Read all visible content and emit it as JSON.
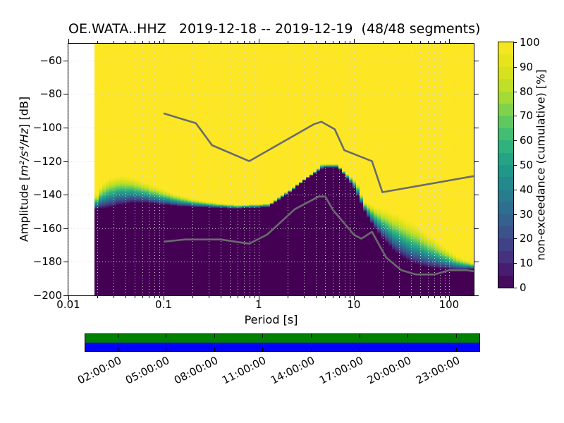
{
  "title": "OE.WATA..HHZ   2019-12-18 -- 2019-12-19  (48/48 segments)",
  "axes": {
    "xlabel": "Period [s]",
    "ylabel_prefix": "Amplitude [",
    "ylabel_math": "m²/s⁴/Hz",
    "ylabel_suffix": "] [dB]",
    "x_ticks": [
      {
        "lp": -2,
        "label": "0.01"
      },
      {
        "lp": -1,
        "label": "0.1"
      },
      {
        "lp": 0,
        "label": "1"
      },
      {
        "lp": 1,
        "label": "10"
      },
      {
        "lp": 2,
        "label": "100"
      }
    ],
    "y_ticks": [
      {
        "db": -60,
        "label": "−60"
      },
      {
        "db": -80,
        "label": "−80"
      },
      {
        "db": -100,
        "label": "−100"
      },
      {
        "db": -120,
        "label": "−120"
      },
      {
        "db": -140,
        "label": "−140"
      },
      {
        "db": -160,
        "label": "−160"
      },
      {
        "db": -180,
        "label": "−180"
      },
      {
        "db": -200,
        "label": "−200"
      }
    ]
  },
  "colorbar": {
    "label": "non-exceedance (cumulative) [%]",
    "ticks": [
      "0",
      "10",
      "20",
      "30",
      "40",
      "50",
      "60",
      "70",
      "80",
      "90",
      "100"
    ],
    "min": 0,
    "max": 100,
    "steps": 20
  },
  "timeline": {
    "labels": [
      "02:00:00",
      "05:00:00",
      "08:00:00",
      "11:00:00",
      "14:00:00",
      "17:00:00",
      "20:00:00",
      "23:00:00"
    ],
    "tick_hours": [
      2,
      5,
      8,
      11,
      14,
      17,
      20,
      23
    ],
    "span_hours": 24.45,
    "top_color": "#008000",
    "bottom_color": "#0000ff"
  },
  "chart_data": {
    "type": "heatmap",
    "description": "PPSD cumulative non-exceedance distribution vs period",
    "x_axis": {
      "label": "Period [s]",
      "scale": "log10",
      "min_log10": -2,
      "max_log10": 2.26
    },
    "y_axis": {
      "label": "Amplitude [m²/s⁴/Hz] [dB]",
      "min": -200,
      "max": -50
    },
    "grid_db": [
      -60,
      -80,
      -100,
      -120,
      -140,
      -160,
      -180
    ],
    "colormap": [
      "#440154",
      "#482878",
      "#3e4a89",
      "#31688e",
      "#26828e",
      "#1f9e89",
      "#35b779",
      "#6ece58",
      "#b5de2b",
      "#dfe318",
      "#fde725"
    ],
    "color_above": "#fde725",
    "color_below": "#440154",
    "data_log10_period_start": -1.719,
    "column_step_log10": 0.0376,
    "boundary_100pct": [
      [
        -1.72,
        -142.4
      ],
      [
        -1.67,
        -135.3
      ],
      [
        -1.61,
        -131.5
      ],
      [
        -1.53,
        -129.0
      ],
      [
        -1.44,
        -128.2
      ],
      [
        -1.35,
        -129.0
      ],
      [
        -1.24,
        -131.1
      ],
      [
        -1.13,
        -134.0
      ],
      [
        -1.0,
        -136.6
      ],
      [
        -0.87,
        -139.5
      ],
      [
        -0.72,
        -142.0
      ],
      [
        -0.57,
        -143.7
      ],
      [
        -0.39,
        -145.0
      ],
      [
        -0.2,
        -145.8
      ],
      [
        -0.02,
        -145.4
      ],
      [
        0.13,
        -145.0
      ],
      [
        0.24,
        -140.3
      ],
      [
        0.36,
        -135.7
      ],
      [
        0.47,
        -131.1
      ],
      [
        0.58,
        -126.9
      ],
      [
        0.67,
        -121.4
      ],
      [
        0.82,
        -121.4
      ],
      [
        0.91,
        -126.5
      ],
      [
        0.99,
        -129.8
      ],
      [
        1.06,
        -134.0
      ],
      [
        1.1,
        -143.7
      ],
      [
        1.17,
        -145.4
      ],
      [
        1.24,
        -147.1
      ],
      [
        1.32,
        -148.3
      ],
      [
        1.39,
        -150.0
      ],
      [
        1.47,
        -151.7
      ],
      [
        1.54,
        -154.2
      ],
      [
        1.62,
        -156.3
      ],
      [
        1.69,
        -158.8
      ],
      [
        1.76,
        -162.2
      ],
      [
        1.84,
        -165.5
      ],
      [
        1.91,
        -168.9
      ],
      [
        1.99,
        -172.3
      ],
      [
        2.06,
        -175.6
      ],
      [
        2.13,
        -177.7
      ],
      [
        2.21,
        -179.4
      ],
      [
        2.26,
        -180.3
      ]
    ],
    "boundary_0pct": [
      [
        -1.72,
        -148.7
      ],
      [
        -1.61,
        -148.3
      ],
      [
        -1.46,
        -146.2
      ],
      [
        -1.31,
        -145.0
      ],
      [
        -1.16,
        -145.0
      ],
      [
        -1.0,
        -146.2
      ],
      [
        -0.79,
        -147.1
      ],
      [
        -0.57,
        -147.5
      ],
      [
        -0.27,
        -148.3
      ],
      [
        -0.05,
        -147.9
      ],
      [
        0.1,
        -147.5
      ],
      [
        0.24,
        -142.4
      ],
      [
        0.34,
        -138.2
      ],
      [
        0.44,
        -133.2
      ],
      [
        0.54,
        -129.0
      ],
      [
        0.64,
        -125.6
      ],
      [
        0.7,
        -123.9
      ],
      [
        0.84,
        -123.9
      ],
      [
        0.91,
        -129.0
      ],
      [
        0.99,
        -134.5
      ],
      [
        1.06,
        -142.4
      ],
      [
        1.13,
        -151.3
      ],
      [
        1.21,
        -158.4
      ],
      [
        1.28,
        -164.3
      ],
      [
        1.36,
        -169.7
      ],
      [
        1.43,
        -173.9
      ],
      [
        1.5,
        -177.3
      ],
      [
        1.58,
        -179.8
      ],
      [
        1.65,
        -181.5
      ],
      [
        1.73,
        -182.8
      ],
      [
        1.84,
        -184.0
      ],
      [
        1.95,
        -184.5
      ],
      [
        2.1,
        -184.9
      ],
      [
        2.26,
        -184.5
      ]
    ],
    "noise_models": {
      "color": "#6a6a6e",
      "high": [
        [
          -1,
          -91.5
        ],
        [
          -0.66,
          -97.4
        ],
        [
          -0.49,
          -110.5
        ],
        [
          -0.1,
          -120.0
        ],
        [
          0.58,
          -98.0
        ],
        [
          0.66,
          -96.5
        ],
        [
          0.8,
          -101.0
        ],
        [
          0.9,
          -113.5
        ],
        [
          1.19,
          -120.0
        ],
        [
          1.3,
          -138.5
        ],
        [
          2.26,
          -128.9
        ]
      ],
      "low": [
        [
          -1,
          -168.0
        ],
        [
          -0.77,
          -166.7
        ],
        [
          -0.4,
          -166.7
        ],
        [
          -0.1,
          -169.2
        ],
        [
          0.09,
          -163.7
        ],
        [
          0.38,
          -148.6
        ],
        [
          0.63,
          -141.1
        ],
        [
          0.7,
          -141.1
        ],
        [
          0.78,
          -149.0
        ],
        [
          1.0,
          -163.8
        ],
        [
          1.08,
          -166.2
        ],
        [
          1.19,
          -162.1
        ],
        [
          1.34,
          -177.5
        ],
        [
          1.5,
          -185.0
        ],
        [
          1.65,
          -187.5
        ],
        [
          1.85,
          -187.5
        ],
        [
          2.0,
          -185.0
        ],
        [
          2.19,
          -185.0
        ],
        [
          2.26,
          -185.6
        ]
      ]
    }
  }
}
